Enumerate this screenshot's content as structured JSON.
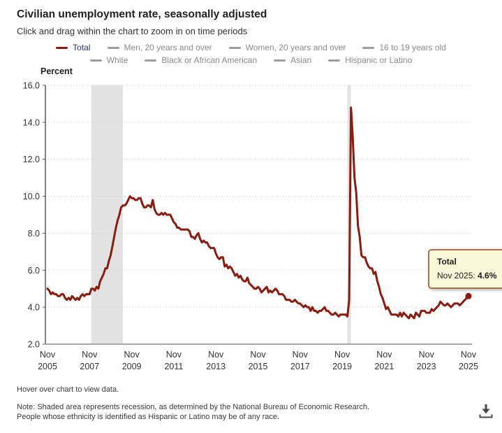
{
  "header": {
    "title": "Civilian unemployment rate, seasonally adjusted",
    "subtitle": "Click and drag within the chart to zoom in on time periods"
  },
  "legend": {
    "items": [
      {
        "label": "Total",
        "active": true
      },
      {
        "label": "Men, 20 years and over",
        "active": false
      },
      {
        "label": "Women, 20 years and over",
        "active": false
      },
      {
        "label": "16 to 19 years old",
        "active": false
      },
      {
        "label": "White",
        "active": false
      },
      {
        "label": "Black or African American",
        "active": false
      },
      {
        "label": "Asian",
        "active": false
      },
      {
        "label": "Hispanic or Latino",
        "active": false
      }
    ]
  },
  "tooltip": {
    "series": "Total",
    "date_label": "Nov 2025:",
    "value": "4.6%"
  },
  "footer": {
    "hover_hint": "Hover over chart to view data.",
    "note_line1": "Note: Shaded area represents recession, as determined by the National Bureau of Economic Research.",
    "note_line2": "People whose ethnicity is identified as Hispanic or Latino may be of any race."
  },
  "icons": {
    "download": "download-icon"
  },
  "colors": {
    "accent": "#8b1a0f",
    "legend-inactive-text": "#8b8b8b",
    "legend-inactive-swatch": "#9e9e9e",
    "legend-active-text": "#2a3a66",
    "tooltip-bg": "#fbf8da",
    "tooltip-border": "#a5714c",
    "recession_band": "#e2e2e2",
    "grid": "#c9c9c9",
    "axis": "#58595b",
    "axis_bottom": "#a8a8a8",
    "tick_text": "#333333",
    "icon": "#4a4a4a"
  },
  "chart_data": {
    "type": "line",
    "title": "Civilian unemployment rate, seasonally adjusted",
    "xlabel": "",
    "ylabel": "Percent",
    "ylim": [
      2.0,
      16.0
    ],
    "ytick_step": 2.0,
    "grid": "dotted-horizontal",
    "frequency": "monthly",
    "x_start": "Nov 2005",
    "x_end": "Nov 2025",
    "x_tick_every_months": 24,
    "x_tick_labels": [
      {
        "month": "Nov",
        "year": "2005"
      },
      {
        "month": "Nov",
        "year": "2007"
      },
      {
        "month": "Nov",
        "year": "2009"
      },
      {
        "month": "Nov",
        "year": "2011"
      },
      {
        "month": "Nov",
        "year": "2013"
      },
      {
        "month": "Nov",
        "year": "2015"
      },
      {
        "month": "Nov",
        "year": "2017"
      },
      {
        "month": "Nov",
        "year": "2019"
      },
      {
        "month": "Nov",
        "year": "2021"
      },
      {
        "month": "Nov",
        "year": "2023"
      },
      {
        "month": "Nov",
        "year": "2025"
      }
    ],
    "recessions": [
      {
        "start": "Dec 2007",
        "end": "Jun 2009",
        "start_index": 25,
        "end_index": 43
      },
      {
        "start": "Feb 2020",
        "end": "Apr 2020",
        "start_index": 171,
        "end_index": 173
      }
    ],
    "legend_position": "top",
    "series": [
      {
        "name": "Total",
        "color": "#8b1a0f",
        "values": [
          5.0,
          4.9,
          4.7,
          4.8,
          4.7,
          4.7,
          4.6,
          4.6,
          4.7,
          4.7,
          4.5,
          4.4,
          4.5,
          4.4,
          4.6,
          4.5,
          4.4,
          4.5,
          4.4,
          4.6,
          4.7,
          4.6,
          4.7,
          4.7,
          4.7,
          5.0,
          5.0,
          4.9,
          5.1,
          5.0,
          5.4,
          5.6,
          5.8,
          6.1,
          6.1,
          6.5,
          6.8,
          7.3,
          7.8,
          8.3,
          8.7,
          9.0,
          9.4,
          9.5,
          9.5,
          9.6,
          9.8,
          10.0,
          9.9,
          9.9,
          9.8,
          9.8,
          9.9,
          9.9,
          9.6,
          9.4,
          9.4,
          9.5,
          9.5,
          9.4,
          9.8,
          9.3,
          9.1,
          9.0,
          9.0,
          9.1,
          9.0,
          9.1,
          9.0,
          9.0,
          9.0,
          8.8,
          8.6,
          8.5,
          8.3,
          8.3,
          8.2,
          8.2,
          8.2,
          8.2,
          8.2,
          8.1,
          7.8,
          7.8,
          7.7,
          7.9,
          8.0,
          7.7,
          7.5,
          7.6,
          7.5,
          7.5,
          7.3,
          7.2,
          7.2,
          7.2,
          6.9,
          6.7,
          6.6,
          6.7,
          6.7,
          6.2,
          6.3,
          6.1,
          6.2,
          6.1,
          5.9,
          5.7,
          5.8,
          5.6,
          5.7,
          5.5,
          5.4,
          5.4,
          5.6,
          5.3,
          5.2,
          5.1,
          5.0,
          5.0,
          5.1,
          5.0,
          4.8,
          4.9,
          5.0,
          5.1,
          4.8,
          4.9,
          4.8,
          4.9,
          5.0,
          4.9,
          4.7,
          4.7,
          4.7,
          4.6,
          4.4,
          4.4,
          4.4,
          4.3,
          4.3,
          4.4,
          4.3,
          4.2,
          4.2,
          4.1,
          4.0,
          4.1,
          4.0,
          4.0,
          3.8,
          4.0,
          3.8,
          3.8,
          3.7,
          3.8,
          3.8,
          3.9,
          4.0,
          3.8,
          3.8,
          3.7,
          3.6,
          3.6,
          3.7,
          3.6,
          3.5,
          3.6,
          3.6,
          3.6,
          3.6,
          3.5,
          4.4,
          14.8,
          13.2,
          11.0,
          10.2,
          8.4,
          7.8,
          6.8,
          6.7,
          6.7,
          6.4,
          6.2,
          6.1,
          6.1,
          5.8,
          5.9,
          5.4,
          5.1,
          4.7,
          4.5,
          4.2,
          3.9,
          4.0,
          3.8,
          3.6,
          3.6,
          3.6,
          3.6,
          3.5,
          3.7,
          3.5,
          3.7,
          3.6,
          3.5,
          3.4,
          3.6,
          3.5,
          3.4,
          3.7,
          3.6,
          3.5,
          3.8,
          3.8,
          3.8,
          3.7,
          3.7,
          3.7,
          3.9,
          3.8,
          3.9,
          4.0,
          4.1,
          4.3,
          4.2,
          4.1,
          4.1,
          4.2,
          4.1,
          4.0,
          4.1,
          4.2,
          4.2,
          4.2,
          4.1,
          4.2,
          4.3,
          4.4,
          4.5,
          4.6
        ]
      }
    ],
    "end_point_marker": {
      "x": "Nov 2025",
      "y": 4.6
    }
  }
}
